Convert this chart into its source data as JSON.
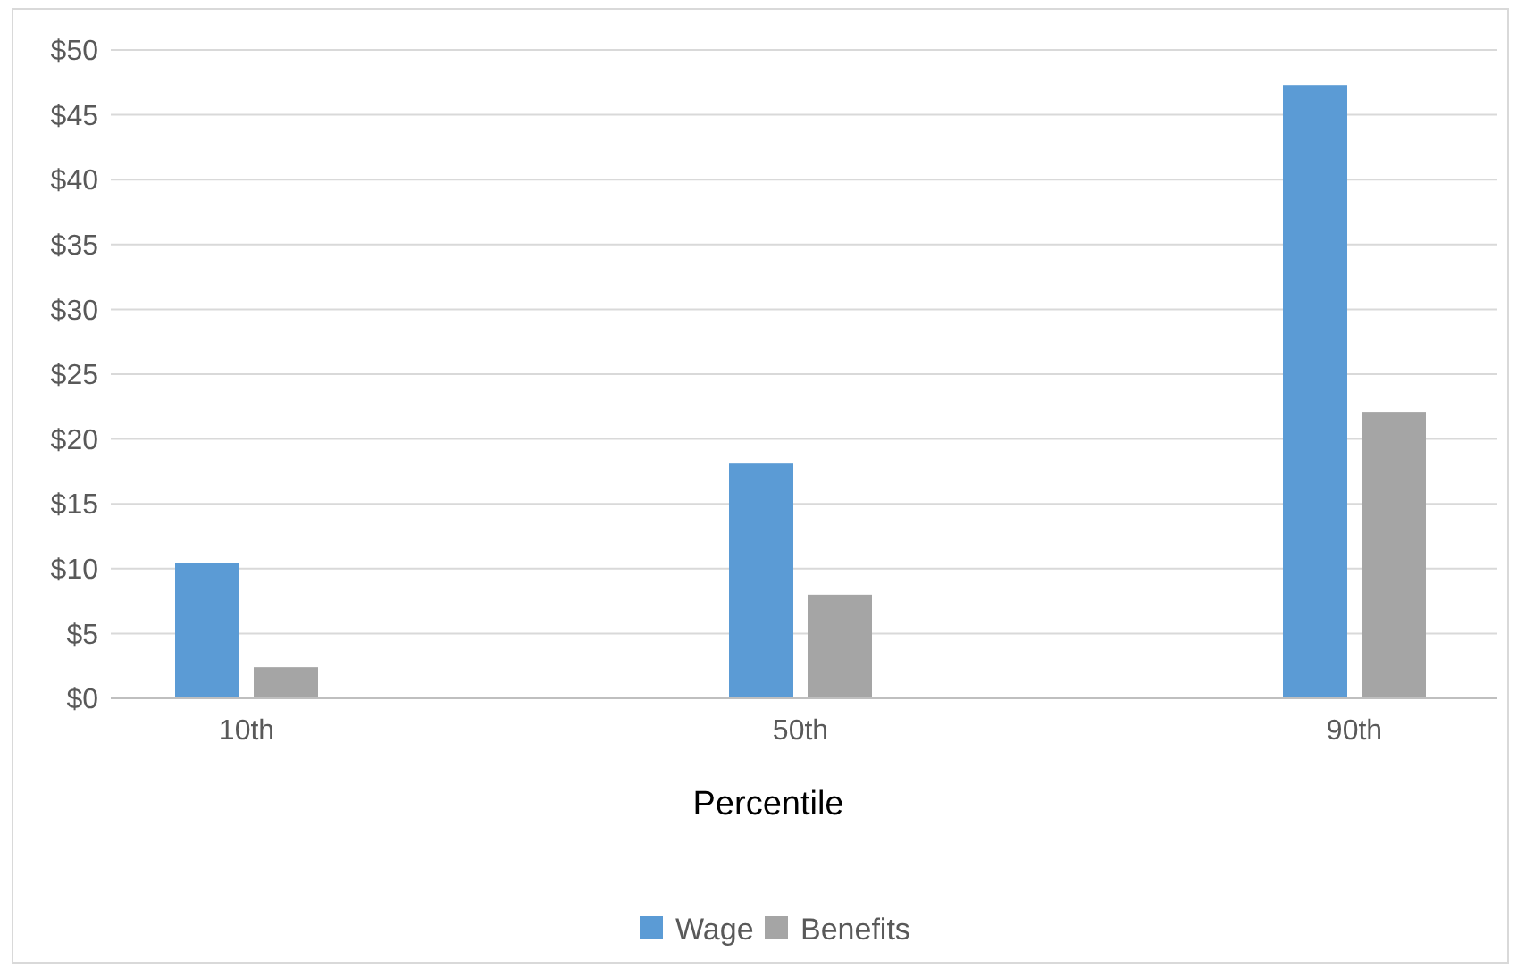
{
  "chart_data": {
    "type": "bar",
    "xlabel": "Percentile",
    "categories": [
      "10th",
      "50th",
      "90th"
    ],
    "series": [
      {
        "name": "Wage",
        "color": "#5b9bd5",
        "values": [
          10.4,
          18.1,
          47.3
        ]
      },
      {
        "name": "Benefits",
        "color": "#a5a5a5",
        "values": [
          2.4,
          8.0,
          22.1
        ]
      }
    ],
    "ylim": [
      0,
      50
    ],
    "yticks": [
      {
        "value": 0,
        "label": "$0"
      },
      {
        "value": 5,
        "label": "$5"
      },
      {
        "value": 10,
        "label": "$10"
      },
      {
        "value": 15,
        "label": "$15"
      },
      {
        "value": 20,
        "label": "$20"
      },
      {
        "value": 25,
        "label": "$25"
      },
      {
        "value": 30,
        "label": "$30"
      },
      {
        "value": 35,
        "label": "$35"
      },
      {
        "value": 40,
        "label": "$40"
      },
      {
        "value": 45,
        "label": "$45"
      },
      {
        "value": 50,
        "label": "$50"
      }
    ],
    "grid": "y",
    "legend": "bottom"
  }
}
